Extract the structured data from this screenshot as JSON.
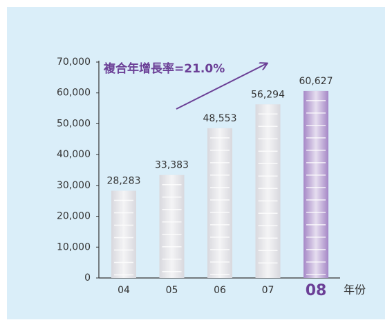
{
  "chart_data": {
    "type": "bar",
    "annotation": "複合年增長率=21.0%",
    "x_label": "年份",
    "categories": [
      "04",
      "05",
      "06",
      "07",
      "08"
    ],
    "values": [
      28283,
      33383,
      48553,
      56294,
      60627
    ],
    "value_labels": [
      "28,283",
      "33,383",
      "48,553",
      "56,294",
      "60,627"
    ],
    "colors": [
      "#d4d4da",
      "#d4d4da",
      "#d4d4da",
      "#d4d4da",
      "#9b7ac0"
    ],
    "ylim": [
      0,
      70000
    ],
    "yticks": [
      {
        "value": 0,
        "label": "0"
      },
      {
        "value": 10000,
        "label": "10,000"
      },
      {
        "value": 20000,
        "label": "20,000"
      },
      {
        "value": 30000,
        "label": "30,000"
      },
      {
        "value": 40000,
        "label": "40,000"
      },
      {
        "value": 50000,
        "label": "50,000"
      },
      {
        "value": 60000,
        "label": "60,000"
      },
      {
        "value": 70000,
        "label": "70,000"
      }
    ],
    "grid": false
  }
}
